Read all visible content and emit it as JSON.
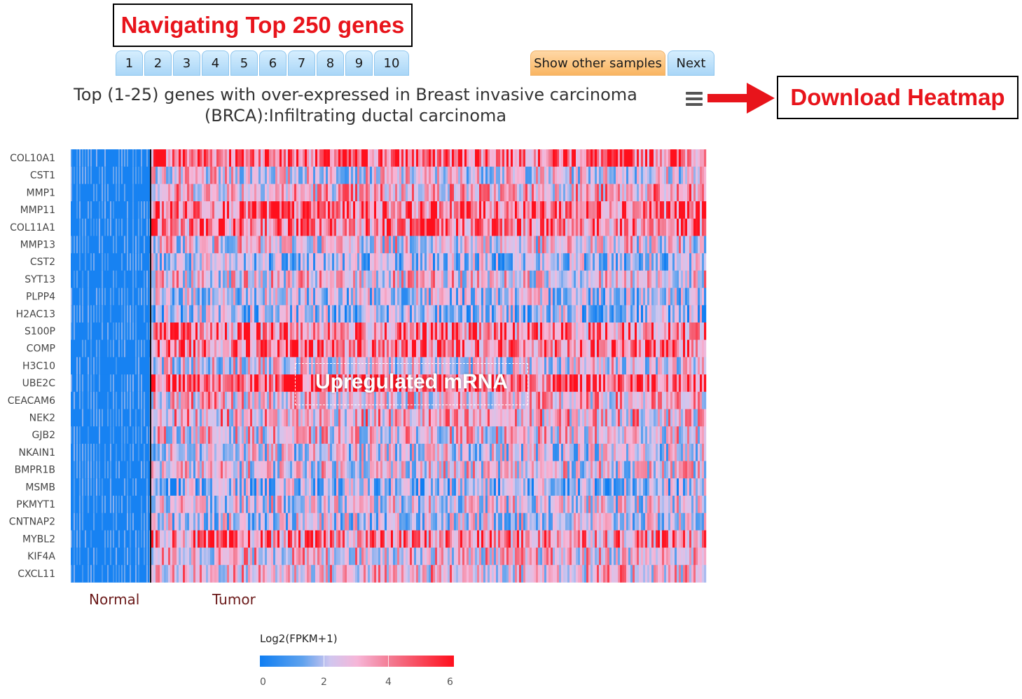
{
  "callouts": {
    "navigating": "Navigating Top 250 genes",
    "download": "Download Heatmap",
    "upregulated": "Upregulated mRNA"
  },
  "pagination": {
    "pages": [
      "1",
      "2",
      "3",
      "4",
      "5",
      "6",
      "7",
      "8",
      "9",
      "10"
    ],
    "show_other_label": "Show other samples",
    "next_label": "Next"
  },
  "heatmap": {
    "title_line1": "Top (1-25) genes with over-expressed in Breast invasive carcinoma",
    "title_line2": "(BRCA):Infiltrating ductal carcinoma",
    "genes": [
      "COL10A1",
      "CST1",
      "MMP1",
      "MMP11",
      "COL11A1",
      "MMP13",
      "CST2",
      "SYT13",
      "PLPP4",
      "H2AC13",
      "S100P",
      "COMP",
      "H3C10",
      "UBE2C",
      "CEACAM6",
      "NEK2",
      "GJB2",
      "NKAIN1",
      "BMPR1B",
      "MSMB",
      "PKMYT1",
      "CNTNAP2",
      "MYBL2",
      "KIF4A",
      "CXCL11"
    ],
    "groups": [
      "Normal",
      "Tumor"
    ],
    "menu_icon": "hamburger-menu-icon"
  },
  "legend": {
    "title": "Log2(FPKM+1)",
    "ticks": [
      "0",
      "2",
      "4",
      "6"
    ],
    "colors": [
      "#0f7ef2",
      "#5fa2ee",
      "#cfc6ef",
      "#f6b6d8",
      "#f3788f",
      "#ff0f1c"
    ]
  },
  "colors": {
    "callout_text": "#e8141b",
    "low": "#0f7ef2",
    "high": "#ff0f1c"
  }
}
